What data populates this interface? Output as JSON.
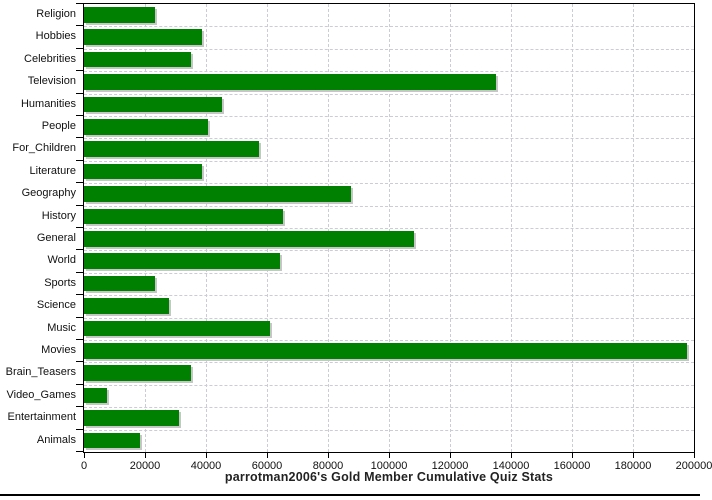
{
  "chart_data": {
    "type": "bar",
    "orientation": "horizontal",
    "title": "parrotman2006's Gold Member Cumulative Quiz Stats",
    "categories": [
      "Religion",
      "Hobbies",
      "Celebrities",
      "Television",
      "Humanities",
      "People",
      "For_Children",
      "Literature",
      "Geography",
      "History",
      "General",
      "World",
      "Sports",
      "Science",
      "Music",
      "Movies",
      "Brain_Teasers",
      "Video_Games",
      "Entertainment",
      "Animals"
    ],
    "values": [
      23400,
      38700,
      35100,
      135200,
      45300,
      40500,
      57500,
      38700,
      87400,
      65200,
      108100,
      64300,
      23400,
      27800,
      61000,
      197800,
      35200,
      7500,
      31300,
      18200
    ],
    "xlim": [
      0,
      200000
    ],
    "x_tick_step": 20000,
    "x_tick_labels": [
      "0",
      "20000",
      "40000",
      "60000",
      "80000",
      "100000",
      "120000",
      "140000",
      "160000",
      "180000",
      "200000"
    ],
    "grid": true,
    "legend": false,
    "colors": {
      "bar": "#008000",
      "bar_shadow": "#c6c6c6",
      "gridline": "#ccccd6",
      "axis": "#000000",
      "label_text": "#111111",
      "title_text": "#222222",
      "background": "#ffffff"
    }
  }
}
